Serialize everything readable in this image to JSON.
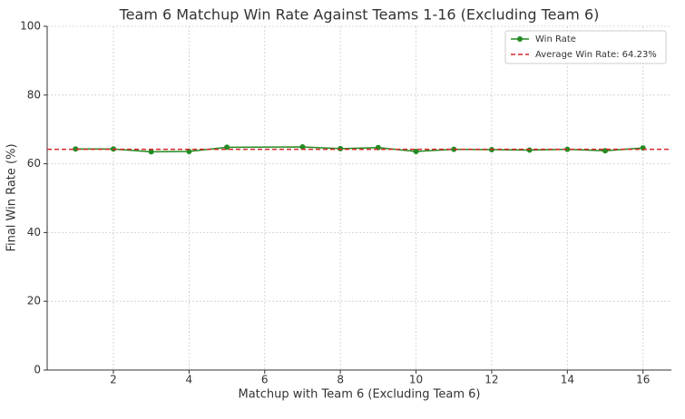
{
  "chart_data": {
    "type": "line",
    "title": "Team 6 Matchup Win Rate Against Teams 1-16 (Excluding Team 6)",
    "xlabel": "Matchup with Team 6 (Excluding Team 6)",
    "ylabel": "Final Win Rate (%)",
    "x": [
      1,
      2,
      3,
      4,
      5,
      7,
      8,
      9,
      10,
      11,
      12,
      13,
      14,
      15,
      16
    ],
    "series": [
      {
        "name": "Win Rate",
        "color": "#228b22",
        "values": [
          64.3,
          64.3,
          63.5,
          63.6,
          64.8,
          64.9,
          64.4,
          64.7,
          63.6,
          64.2,
          64.1,
          64.0,
          64.2,
          63.8,
          64.6
        ]
      }
    ],
    "average": {
      "label": "Average Win Rate: 64.23%",
      "value": 64.23,
      "color": "#d62728"
    },
    "xlim": [
      0.25,
      16.75
    ],
    "xticks": [
      2,
      4,
      6,
      8,
      10,
      12,
      14,
      16
    ],
    "ylim": [
      0,
      100
    ],
    "yticks": [
      0,
      20,
      40,
      60,
      80,
      100
    ],
    "grid": true,
    "legend": "upper right"
  }
}
